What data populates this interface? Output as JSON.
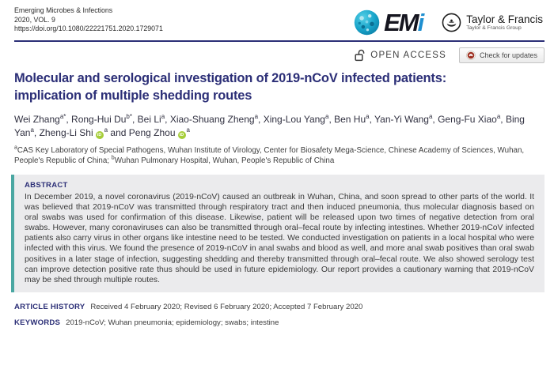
{
  "masthead": {
    "journal": "Emerging Microbes & Infections",
    "volume": "2020, VOL. 9",
    "doi": "https://doi.org/10.1080/22221751.2020.1729071",
    "emi_em": "EM",
    "emi_i": "i",
    "tf_name": "Taylor & Francis",
    "tf_group": "Taylor & Francis Group"
  },
  "badges": {
    "open_access": "OPEN ACCESS",
    "check_updates": "Check for updates"
  },
  "article": {
    "title_lines": [
      "Molecular and serological investigation of 2019-nCoV infected patients:",
      "implication of multiple shedding routes"
    ],
    "authors": [
      {
        "name": "Wei Zhang",
        "sup": "a*",
        "orcid": false,
        "sep": ", "
      },
      {
        "name": "Rong-Hui Du",
        "sup": "b*",
        "orcid": false,
        "sep": ", "
      },
      {
        "name": "Bei Li",
        "sup": "a",
        "orcid": false,
        "sep": ", "
      },
      {
        "name": "Xiao-Shuang Zheng",
        "sup": "a",
        "orcid": false,
        "sep": ", "
      },
      {
        "name": "Xing-Lou Yang",
        "sup": "a",
        "orcid": false,
        "sep": ", "
      },
      {
        "name": "Ben Hu",
        "sup": "a",
        "orcid": false,
        "sep": ", "
      },
      {
        "name": "Yan-Yi Wang",
        "sup": "a",
        "orcid": false,
        "sep": ", "
      },
      {
        "name": "Geng-Fu Xiao",
        "sup": "a",
        "orcid": false,
        "sep": ", "
      },
      {
        "name": "Bing Yan",
        "sup": "a",
        "orcid": false,
        "sep": ", "
      },
      {
        "name": "Zheng-Li Shi",
        "sup": "a",
        "orcid": true,
        "sep": " and "
      },
      {
        "name": "Peng Zhou",
        "sup": "a",
        "orcid": true,
        "sep": ""
      }
    ],
    "orcid_label": "iD",
    "affiliations": [
      {
        "sup": "a",
        "text": "CAS Key Laboratory of Special Pathogens, Wuhan Institute of Virology, Center for Biosafety Mega-Science, Chinese Academy of Sciences, Wuhan, People's Republic of China; "
      },
      {
        "sup": "b",
        "text": "Wuhan Pulmonary Hospital, Wuhan, People's Republic of China"
      }
    ],
    "abstract_label": "ABSTRACT",
    "abstract": "In December 2019, a novel coronavirus (2019-nCoV) caused an outbreak in Wuhan, China, and soon spread to other parts of the world. It was believed that 2019-nCoV was transmitted through respiratory tract and then induced pneumonia, thus molecular diagnosis based on oral swabs was used for confirmation of this disease. Likewise, patient will be released upon two times of negative detection from oral swabs. However, many coronaviruses can also be transmitted through oral–fecal route by infecting intestines. Whether 2019-nCoV infected patients also carry virus in other organs like intestine need to be tested. We conducted investigation on patients in a local hospital who were infected with this virus. We found the presence of 2019-nCoV in anal swabs and blood as well, and more anal swab positives than oral swab positives in a later stage of infection, suggesting shedding and thereby transmitted through oral–fecal route. We also showed serology test can improve detection positive rate thus should be used in future epidemiology. Our report provides a cautionary warning that 2019-nCoV may be shed through multiple routes.",
    "history_label": "ARTICLE HISTORY",
    "history": "Received 4 February 2020; Revised 6 February 2020; Accepted 7 February 2020",
    "keywords_label": "KEYWORDS",
    "keywords": "2019-nCoV; Wuhan pneumonia; epidemiology; swabs; intestine"
  },
  "colors": {
    "navy": "#2c2f77",
    "teal_accent": "#4aa7a2",
    "orcid_green": "#a6ce39",
    "crossmark_red": "#9e3123",
    "abstract_bg": "#ebebed"
  }
}
